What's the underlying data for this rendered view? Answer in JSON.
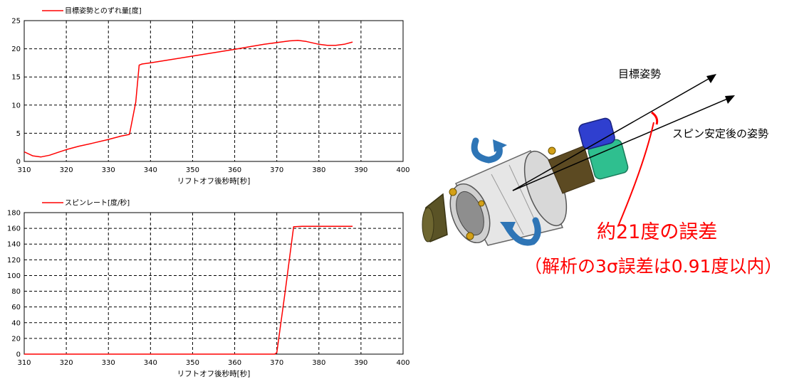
{
  "charts": {
    "attitude": {
      "legend": "目標姿勢とのずれ量[度]",
      "xlabel": "リフトオフ後秒時[秒]"
    },
    "spin": {
      "legend": "スピンレート[度/秒]",
      "xlabel": "リフトオフ後秒時[秒]"
    }
  },
  "chart_data": [
    {
      "type": "line",
      "title": "",
      "xlabel": "リフトオフ後秒時[秒]",
      "ylabel": "",
      "xlim": [
        310,
        400
      ],
      "ylim": [
        0,
        25
      ],
      "xticks": [
        310,
        320,
        330,
        340,
        350,
        360,
        370,
        380,
        390,
        400
      ],
      "yticks": [
        0,
        5,
        10,
        15,
        20,
        25
      ],
      "grid": true,
      "legend_position": "top-left",
      "series": [
        {
          "name": "目標姿勢とのずれ量[度]",
          "color": "#ff0000",
          "x": [
            310,
            312,
            314,
            316,
            318,
            320,
            323,
            326,
            330,
            333,
            335,
            336.5,
            337.3,
            338,
            340,
            345,
            350,
            355,
            360,
            363,
            367,
            370,
            373,
            375,
            377,
            380,
            382,
            384,
            386,
            388
          ],
          "y": [
            1.7,
            1.0,
            0.8,
            1.1,
            1.6,
            2.1,
            2.7,
            3.2,
            3.9,
            4.5,
            4.8,
            10.5,
            17.1,
            17.3,
            17.5,
            18.1,
            18.7,
            19.3,
            19.9,
            20.3,
            20.8,
            21.1,
            21.4,
            21.5,
            21.3,
            20.8,
            20.6,
            20.6,
            20.8,
            21.2
          ]
        }
      ]
    },
    {
      "type": "line",
      "title": "",
      "xlabel": "リフトオフ後秒時[秒]",
      "ylabel": "",
      "xlim": [
        310,
        400
      ],
      "ylim": [
        0,
        180
      ],
      "xticks": [
        310,
        320,
        330,
        340,
        350,
        360,
        370,
        380,
        390,
        400
      ],
      "yticks": [
        0,
        20,
        40,
        60,
        80,
        100,
        120,
        140,
        160,
        180
      ],
      "grid": true,
      "legend_position": "top-left",
      "series": [
        {
          "name": "スピンレート[度/秒]",
          "color": "#ff0000",
          "x": [
            310,
            369.5,
            370,
            372,
            374,
            376,
            380,
            385,
            388
          ],
          "y": [
            0,
            0,
            2,
            80,
            162,
            162.5,
            162.5,
            162.5,
            162.5
          ]
        }
      ]
    }
  ],
  "diagram": {
    "target_attitude_label": "目標姿勢",
    "spin_attitude_label": "スピン安定後の姿勢",
    "error_main": "約21度の誤差",
    "error_sub": "（解析の3σ誤差は0.91度以内）",
    "error_color": "#ff0000",
    "arrow_color": "#2e75b6"
  }
}
